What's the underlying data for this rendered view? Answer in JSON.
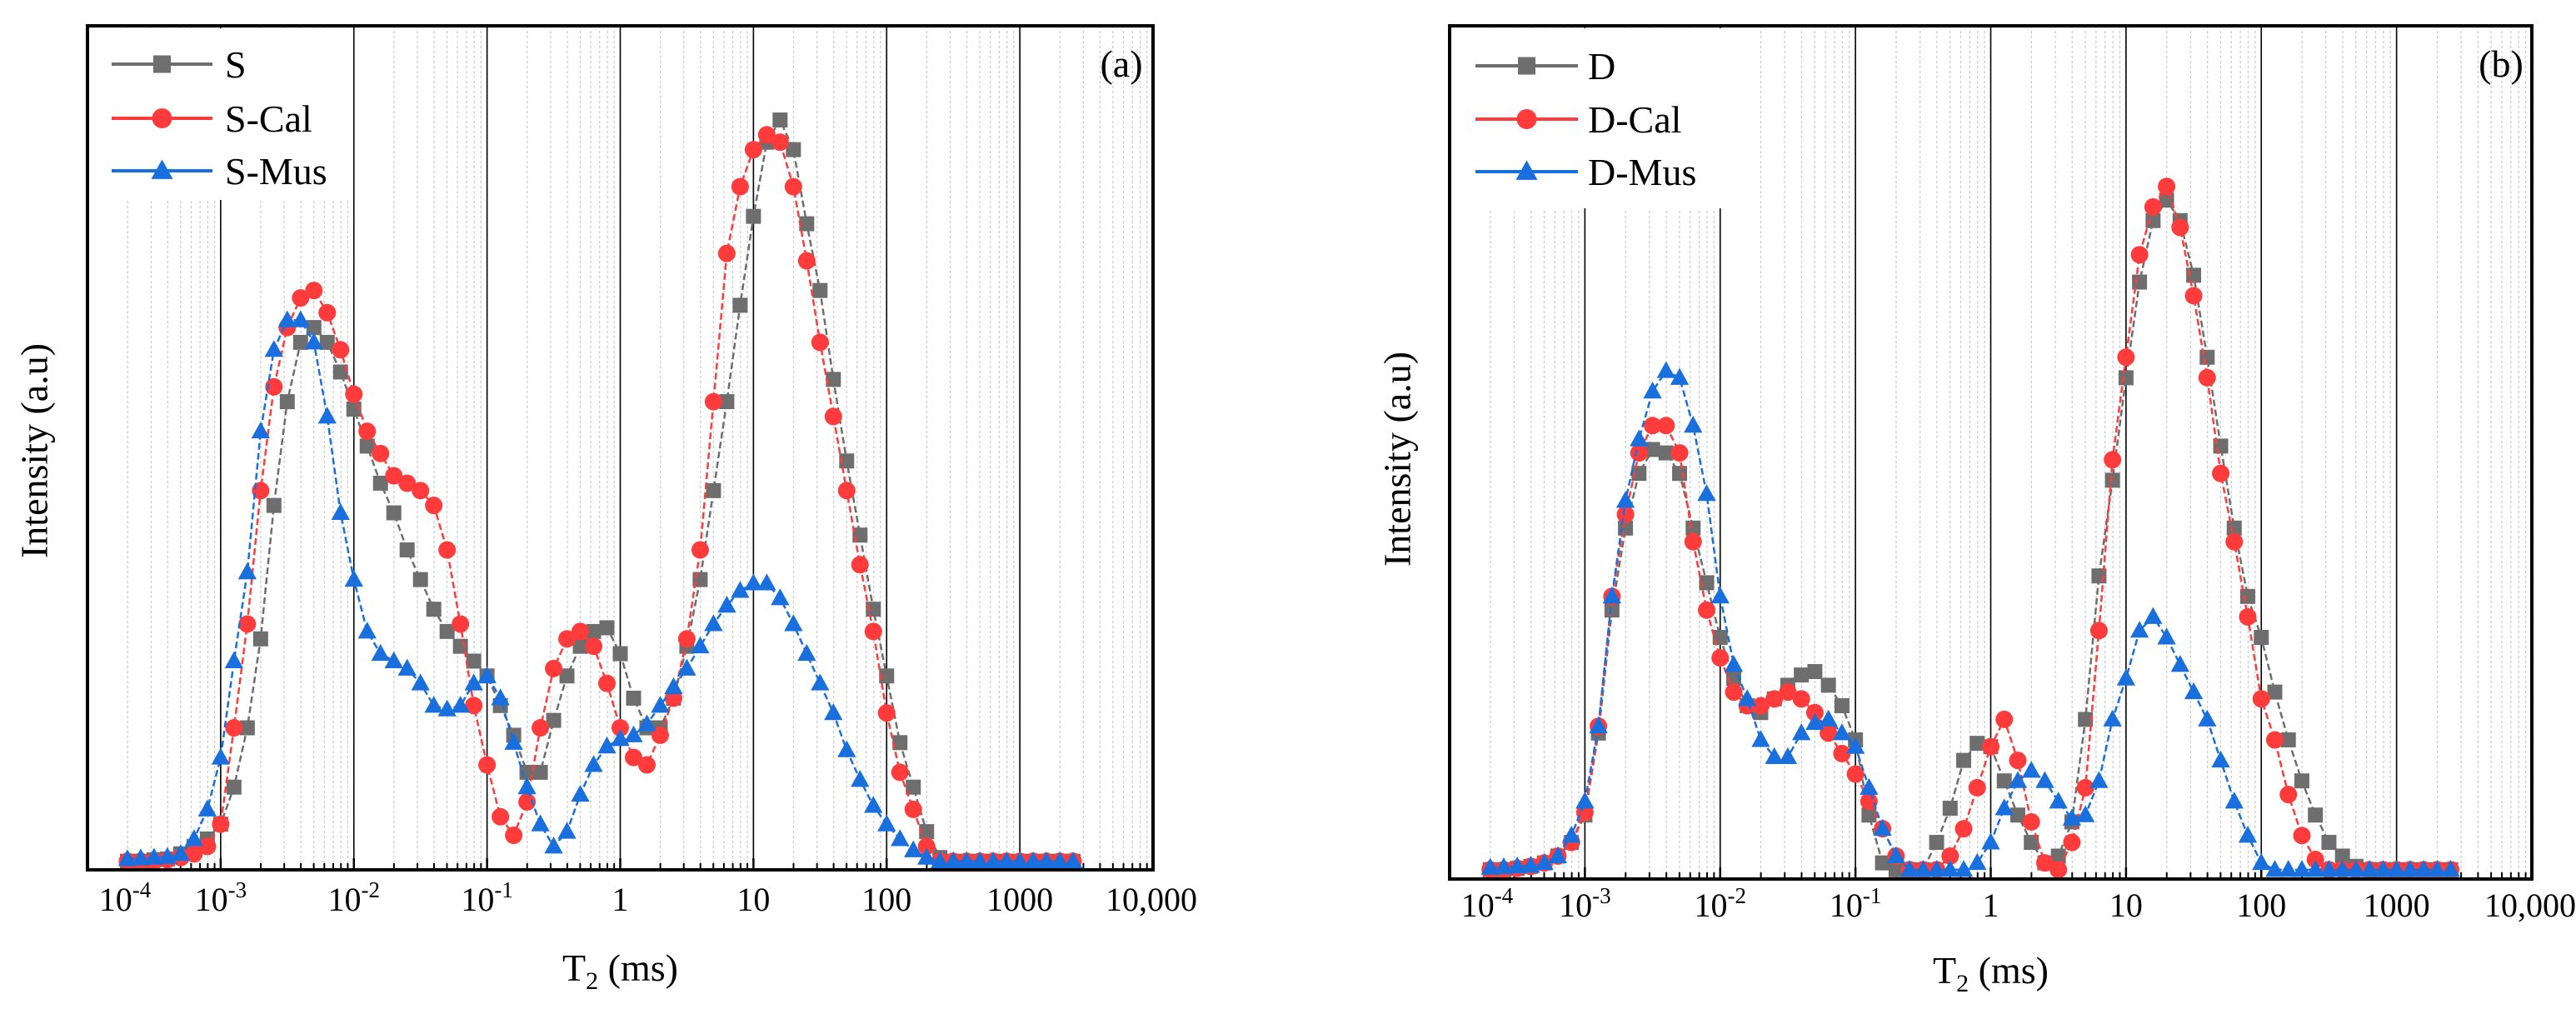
{
  "chart_data": [
    {
      "panel_label": "(a)",
      "type": "line",
      "xscale": "log",
      "xlabel_main": "T",
      "xlabel_sub": "2",
      "xlabel_unit": " (ms)",
      "ylabel": "Intensity (a.u)",
      "xlim_log10": [
        -4,
        4
      ],
      "ylim": [
        -1.16,
        112.7
      ],
      "grid": "vertical, major solid, minor dotted",
      "legend_position": "top-left",
      "x_tick_labels": [
        {
          "base": "10",
          "exp": "-4"
        },
        {
          "base": "10",
          "exp": "-3"
        },
        {
          "base": "10",
          "exp": "-2"
        },
        {
          "base": "10",
          "exp": "-1"
        },
        {
          "base": "1",
          "exp": ""
        },
        {
          "base": "10",
          "exp": ""
        },
        {
          "base": "100",
          "exp": ""
        },
        {
          "base": "1000",
          "exp": ""
        },
        {
          "base": "10,000",
          "exp": ""
        }
      ],
      "log10_x_start": -3.7,
      "log10_x_step": 0.1,
      "series": [
        {
          "name": "S",
          "color": "#6e6e6e",
          "marker": "square",
          "values": [
            0,
            0,
            0.2,
            0.3,
            1,
            2,
            3,
            5,
            10,
            18,
            30,
            48,
            62,
            70,
            72,
            70,
            66,
            61,
            56,
            51,
            47,
            42,
            38,
            34,
            31,
            29,
            27,
            25,
            21,
            17,
            12,
            12,
            19,
            25,
            29,
            31,
            31.5,
            28,
            22,
            18,
            18,
            22,
            29,
            38,
            50,
            62,
            75,
            87,
            97,
            100,
            96,
            86,
            77,
            65,
            54,
            44,
            34,
            25,
            16,
            10,
            4,
            0.5,
            0,
            0,
            0,
            0,
            0,
            0,
            0,
            0,
            0,
            0
          ]
        },
        {
          "name": "S-Cal",
          "color": "#ff3b3b",
          "marker": "circle",
          "values": [
            0,
            0,
            0,
            0.2,
            0.5,
            1,
            2,
            5,
            18,
            32,
            50,
            64,
            72,
            76,
            77,
            74,
            69,
            63,
            58,
            55,
            52,
            51,
            50,
            48,
            42,
            32,
            21,
            13,
            6,
            3.5,
            8,
            18,
            26,
            30,
            31,
            29,
            24,
            18,
            14,
            13,
            17,
            22,
            30,
            42,
            62,
            82,
            91,
            96,
            98,
            97,
            91,
            81,
            70,
            60,
            50,
            40,
            31,
            20,
            12,
            7,
            2,
            0,
            0,
            0,
            0,
            0,
            0,
            0,
            0,
            0,
            0,
            0
          ]
        },
        {
          "name": "S-Mus",
          "color": "#1a6fdf",
          "marker": "triangle",
          "values": [
            0.3,
            0.4,
            0.5,
            0.6,
            1,
            3,
            7,
            14,
            27,
            39,
            58,
            69,
            73,
            73,
            70,
            60,
            47,
            38,
            31,
            28,
            27,
            26,
            24,
            21,
            20.5,
            21,
            24,
            25,
            22,
            16,
            10,
            5,
            2,
            4,
            9,
            13,
            15.5,
            16.5,
            17,
            18.5,
            21,
            23.5,
            26,
            29,
            32,
            34.5,
            36.5,
            37.5,
            37.5,
            35.5,
            32,
            28,
            24,
            20,
            15,
            11,
            7.5,
            5,
            3,
            1.5,
            0.5,
            0,
            0,
            0,
            0,
            0,
            0,
            0,
            0,
            0,
            0,
            0
          ]
        }
      ]
    },
    {
      "panel_label": "(b)",
      "type": "line",
      "xscale": "log",
      "xlabel_main": "T",
      "xlabel_sub": "2",
      "xlabel_unit": " (ms)",
      "ylabel": "Intensity (a.u)",
      "xlim_log10": [
        -4,
        4
      ],
      "ylim": [
        -1.36,
        123.5
      ],
      "grid": "vertical, major solid, minor dotted",
      "legend_position": "top-left",
      "x_tick_labels": [
        {
          "base": "10",
          "exp": "-4"
        },
        {
          "base": "10",
          "exp": "-3"
        },
        {
          "base": "10",
          "exp": "-2"
        },
        {
          "base": "10",
          "exp": "-1"
        },
        {
          "base": "1",
          "exp": ""
        },
        {
          "base": "10",
          "exp": ""
        },
        {
          "base": "100",
          "exp": ""
        },
        {
          "base": "1000",
          "exp": ""
        },
        {
          "base": "10,000",
          "exp": ""
        }
      ],
      "log10_x_start": -3.7,
      "log10_x_step": 0.1,
      "series": [
        {
          "name": "D",
          "color": "#6e6e6e",
          "marker": "square",
          "values": [
            0,
            0,
            0.2,
            0.5,
            1,
            2,
            4,
            8,
            20,
            38,
            50,
            58,
            61.5,
            61,
            58,
            50,
            42,
            34,
            28,
            24,
            23,
            25,
            27,
            28.5,
            29,
            27,
            24,
            19,
            8,
            1,
            0,
            0,
            0,
            4,
            9,
            16,
            18.5,
            18,
            13,
            8,
            4,
            1,
            2,
            7,
            22,
            43,
            57,
            72,
            86,
            95,
            98,
            95,
            87,
            75,
            62,
            50,
            40,
            34,
            26,
            19,
            13,
            8,
            4,
            2,
            0.5,
            0,
            0,
            0,
            0,
            0,
            0,
            0
          ]
        },
        {
          "name": "D-Cal",
          "color": "#ff3b3b",
          "marker": "circle",
          "values": [
            0,
            0,
            0.2,
            0.5,
            1,
            2,
            4,
            8.4,
            21,
            40,
            52,
            61,
            65,
            65,
            61,
            48,
            38,
            31,
            26,
            24,
            24,
            25,
            26,
            25,
            23,
            20,
            17,
            14,
            10,
            6,
            2,
            0,
            0,
            0,
            2,
            6,
            12,
            18,
            22,
            16,
            7,
            1,
            0,
            4,
            12,
            35,
            60,
            75,
            90,
            97,
            100,
            94,
            84,
            72,
            58,
            48,
            37,
            25,
            19,
            11,
            5,
            1.5,
            0,
            0,
            0,
            0,
            0,
            0,
            0,
            0,
            0,
            0
          ]
        },
        {
          "name": "D-Mus",
          "color": "#1a6fdf",
          "marker": "triangle",
          "values": [
            0.3,
            0.4,
            0.5,
            0.6,
            1,
            2,
            5,
            10,
            21,
            40,
            54,
            63,
            70,
            73,
            72,
            65,
            55,
            40,
            30,
            25,
            19,
            16.5,
            16.5,
            20,
            21.5,
            22,
            20,
            18,
            12,
            6,
            2,
            0,
            0,
            0,
            0,
            0,
            1,
            4,
            9,
            13,
            14.5,
            13,
            10,
            7.5,
            8,
            13,
            22,
            28,
            35,
            37,
            34,
            30,
            26,
            22,
            16,
            10,
            5,
            1,
            0,
            0,
            0,
            0,
            0,
            0,
            0,
            0,
            0,
            0,
            0,
            0,
            0,
            0
          ]
        }
      ]
    }
  ]
}
